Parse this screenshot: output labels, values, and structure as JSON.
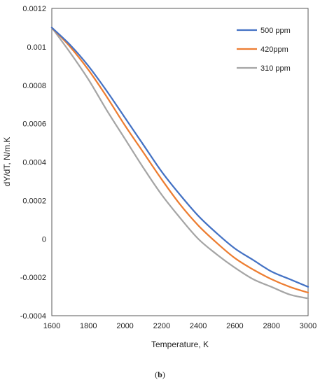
{
  "caption": {
    "open": "(",
    "label": "b",
    "close": ")"
  },
  "chart_data": {
    "type": "line",
    "title": "",
    "xlabel": "Temperature,  K",
    "ylabel": "dY/dT, N/m.K",
    "xlim": [
      1600,
      3000
    ],
    "ylim": [
      -0.0004,
      0.0012
    ],
    "xticks": [
      1600,
      1800,
      2000,
      2200,
      2400,
      2600,
      2800,
      3000
    ],
    "yticks": [
      -0.0004,
      -0.0002,
      0,
      0.0002,
      0.0004,
      0.0006,
      0.0008,
      0.001,
      0.0012
    ],
    "xtick_labels": [
      "1600",
      "1800",
      "2000",
      "2200",
      "2400",
      "2600",
      "2800",
      "3000"
    ],
    "ytick_labels": [
      "-0.0004",
      "-0.0002",
      "0",
      "0.0002",
      "0.0004",
      "0.0006",
      "0.0008",
      "0.001",
      "0.0012"
    ],
    "grid": false,
    "legend_position": "top-right",
    "x": [
      1600,
      1700,
      1800,
      1900,
      2000,
      2100,
      2200,
      2300,
      2400,
      2500,
      2600,
      2700,
      2800,
      2900,
      3000
    ],
    "series": [
      {
        "name": "500 ppm",
        "color": "#4472C4",
        "values": [
          0.0011,
          0.00101,
          0.0009,
          0.00077,
          0.00063,
          0.00049,
          0.00035,
          0.00023,
          0.00012,
          3e-05,
          -5e-05,
          -0.00011,
          -0.00017,
          -0.00021,
          -0.00025
        ]
      },
      {
        "name": "420ppm",
        "color": "#ED7D31",
        "values": [
          0.0011,
          0.001,
          0.00088,
          0.00074,
          0.00059,
          0.00045,
          0.00031,
          0.00018,
          7e-05,
          -2e-05,
          -0.0001,
          -0.00016,
          -0.00021,
          -0.00025,
          -0.00028
        ]
      },
      {
        "name": "310 ppm",
        "color": "#A5A5A5",
        "values": [
          0.0011,
          0.00097,
          0.00083,
          0.00067,
          0.00052,
          0.00037,
          0.00023,
          0.00011,
          0.0,
          -8e-05,
          -0.00015,
          -0.00021,
          -0.00025,
          -0.00029,
          -0.00031
        ]
      }
    ]
  }
}
